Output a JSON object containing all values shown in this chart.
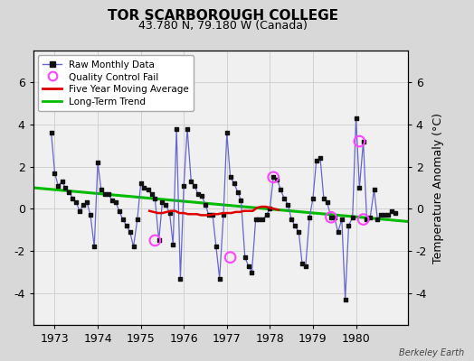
{
  "title": "TOR SCARBOROUGH COLLEGE",
  "subtitle": "43.780 N, 79.180 W (Canada)",
  "ylabel": "Temperature Anomaly (°C)",
  "credit": "Berkeley Earth",
  "bg_color": "#d8d8d8",
  "plot_bg_color": "#f0f0f0",
  "ylim": [
    -5.5,
    7.5
  ],
  "xlim": [
    1972.5,
    1981.2
  ],
  "xticks": [
    1973,
    1974,
    1975,
    1976,
    1977,
    1978,
    1979,
    1980
  ],
  "yticks": [
    -4,
    -2,
    0,
    2,
    4,
    6
  ],
  "raw_x": [
    1972.92,
    1973.0,
    1973.08,
    1973.17,
    1973.25,
    1973.33,
    1973.42,
    1973.5,
    1973.58,
    1973.67,
    1973.75,
    1973.83,
    1973.92,
    1974.0,
    1974.08,
    1974.17,
    1974.25,
    1974.33,
    1974.42,
    1974.5,
    1974.58,
    1974.67,
    1974.75,
    1974.83,
    1974.92,
    1975.0,
    1975.08,
    1975.17,
    1975.25,
    1975.33,
    1975.42,
    1975.5,
    1975.58,
    1975.67,
    1975.75,
    1975.83,
    1975.92,
    1976.0,
    1976.08,
    1976.17,
    1976.25,
    1976.33,
    1976.42,
    1976.5,
    1976.58,
    1976.67,
    1976.75,
    1976.83,
    1976.92,
    1977.0,
    1977.08,
    1977.17,
    1977.25,
    1977.33,
    1977.42,
    1977.5,
    1977.58,
    1977.67,
    1977.75,
    1977.83,
    1977.92,
    1978.0,
    1978.08,
    1978.17,
    1978.25,
    1978.33,
    1978.42,
    1978.5,
    1978.58,
    1978.67,
    1978.75,
    1978.83,
    1978.92,
    1979.0,
    1979.08,
    1979.17,
    1979.25,
    1979.33,
    1979.42,
    1979.5,
    1979.58,
    1979.67,
    1979.75,
    1979.83,
    1979.92,
    1980.0,
    1980.08,
    1980.17,
    1980.25,
    1980.33,
    1980.42,
    1980.5,
    1980.58,
    1980.67,
    1980.75,
    1980.83,
    1980.92
  ],
  "raw_y": [
    3.6,
    1.7,
    1.1,
    1.3,
    1.0,
    0.8,
    0.5,
    0.3,
    -0.1,
    0.2,
    0.3,
    -0.3,
    -1.8,
    2.2,
    0.9,
    0.7,
    0.7,
    0.4,
    0.3,
    -0.1,
    -0.5,
    -0.8,
    -1.1,
    -1.8,
    -0.5,
    1.2,
    1.0,
    0.9,
    0.7,
    0.5,
    -1.5,
    0.3,
    0.2,
    -0.2,
    -1.7,
    3.8,
    -3.3,
    1.1,
    3.8,
    1.3,
    1.1,
    0.7,
    0.6,
    0.2,
    -0.3,
    -0.3,
    -1.8,
    -3.3,
    -0.3,
    3.6,
    1.5,
    1.2,
    0.8,
    0.4,
    -2.3,
    -2.7,
    -3.0,
    -0.5,
    -0.5,
    -0.5,
    -0.3,
    0.0,
    1.5,
    1.4,
    0.9,
    0.5,
    0.2,
    -0.5,
    -0.8,
    -1.1,
    -2.6,
    -2.7,
    -0.4,
    0.5,
    2.3,
    2.4,
    0.5,
    0.3,
    -0.4,
    -0.4,
    -1.1,
    -0.5,
    -4.3,
    -0.8,
    -0.4,
    4.3,
    1.0,
    3.2,
    -0.5,
    -0.4,
    0.9,
    -0.5,
    -0.3,
    -0.3,
    -0.3,
    -0.1,
    -0.2
  ],
  "qc_fail_x": [
    1975.33,
    1977.08,
    1978.08,
    1979.42,
    1980.08,
    1980.17
  ],
  "qc_fail_y": [
    -1.5,
    -2.3,
    1.5,
    -0.4,
    3.2,
    -0.5
  ],
  "moving_avg_x": [
    1975.2,
    1975.3,
    1975.4,
    1975.5,
    1975.6,
    1975.7,
    1975.8,
    1975.9,
    1976.0,
    1976.1,
    1976.2,
    1976.3,
    1976.4,
    1976.5,
    1976.6,
    1976.7,
    1976.8,
    1976.9,
    1977.0,
    1977.1,
    1977.2,
    1977.3,
    1977.4,
    1977.5,
    1977.6,
    1977.7,
    1977.8,
    1977.9,
    1978.0,
    1978.1,
    1978.2
  ],
  "moving_avg_y": [
    -0.1,
    -0.15,
    -0.2,
    -0.2,
    -0.15,
    -0.1,
    -0.1,
    -0.2,
    -0.2,
    -0.25,
    -0.25,
    -0.25,
    -0.3,
    -0.3,
    -0.3,
    -0.25,
    -0.25,
    -0.2,
    -0.2,
    -0.2,
    -0.15,
    -0.15,
    -0.1,
    -0.1,
    -0.1,
    0.05,
    0.1,
    0.1,
    0.05,
    0.0,
    -0.05
  ],
  "trend_x": [
    1972.5,
    1981.2
  ],
  "trend_y": [
    1.0,
    -0.6
  ],
  "line_color": "#6666cc",
  "marker_color": "#111111",
  "qc_color": "#ff44ff",
  "moving_avg_color": "#dd0000",
  "trend_color": "#00bb00"
}
